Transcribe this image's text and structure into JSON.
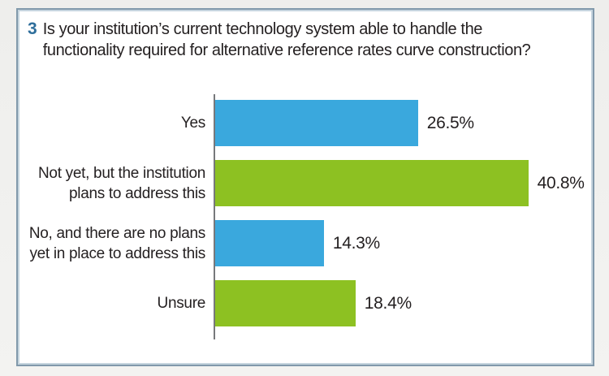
{
  "title": {
    "number": "3",
    "line1": "Is your institution’s current technology system able to handle the",
    "line2": "functionality required for alternative reference rates curve construction?",
    "full_text": "Is your institution’s current technology system able to handle the functionality required for alternative reference rates curve construction?"
  },
  "chart_data": {
    "type": "bar",
    "orientation": "horizontal",
    "title": "Is your institution’s current technology system able to handle the functionality required for alternative reference rates curve construction?",
    "categories": [
      "Yes",
      "Not yet, but the institution plans to address this",
      "No, and there are no plans yet in place to address this",
      "Unsure"
    ],
    "categories_lines": [
      [
        "Yes"
      ],
      [
        "Not yet, but the institution",
        "plans to address this"
      ],
      [
        "No, and there are no plans",
        "yet in place to address this"
      ],
      [
        "Unsure"
      ]
    ],
    "values": [
      26.5,
      40.8,
      14.3,
      18.4
    ],
    "value_labels": [
      "26.5%",
      "40.8%",
      "14.3%",
      "18.4%"
    ],
    "bar_colors": [
      "#3aa8dd",
      "#8dc122",
      "#3aa8dd",
      "#8dc122"
    ],
    "xlabel": "",
    "ylabel": "",
    "xlim": [
      0,
      45
    ],
    "grid": false,
    "legend": false
  },
  "colors": {
    "bar_blue": "#3aa8dd",
    "bar_green": "#8dc122",
    "question_number": "#2e6e9b",
    "text": "#252122",
    "axis_line": "#77787b",
    "card_border": "#8199ab",
    "card_border_inner": "#c6d5df",
    "page_background": "#f1f1ef"
  }
}
